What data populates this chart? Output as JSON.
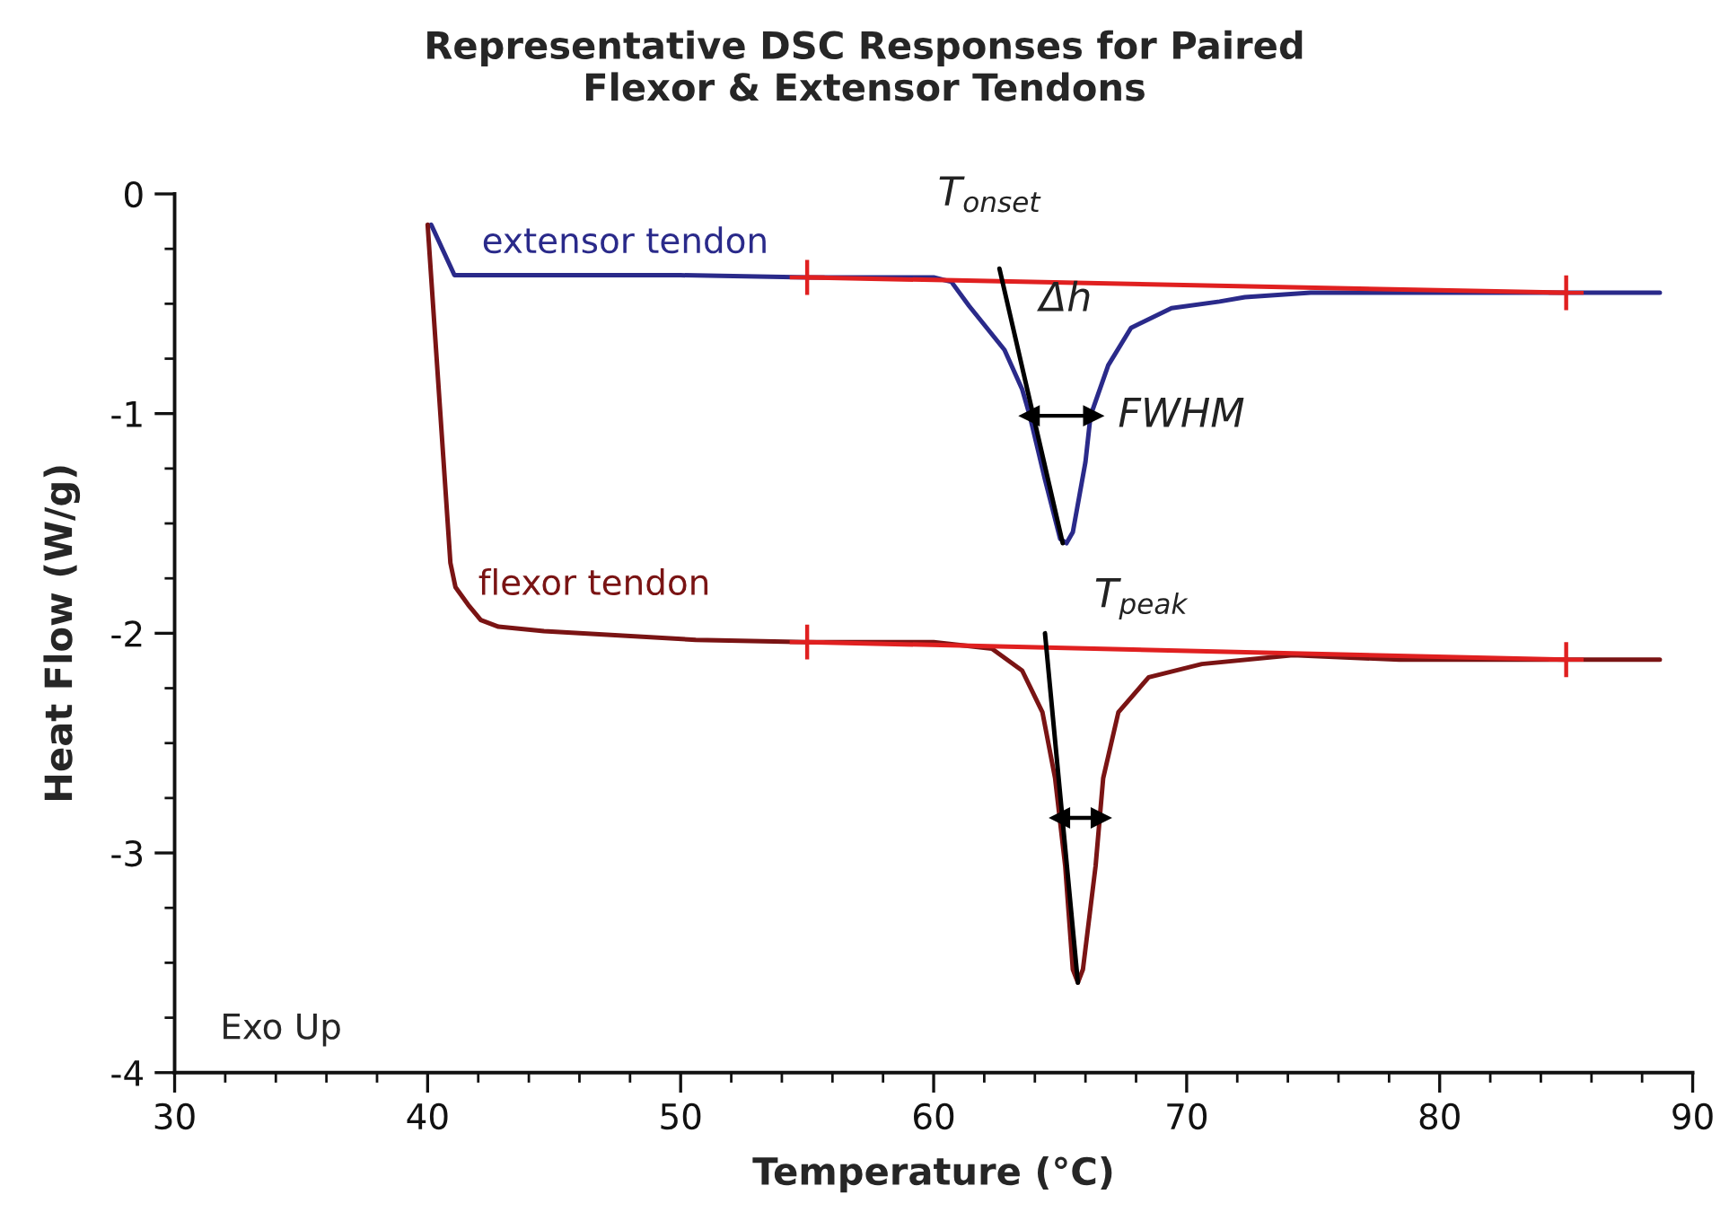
{
  "chart_data": {
    "type": "line",
    "title": "Representative DSC Responses for Paired\nFlexor & Extensor Tendons",
    "xlabel": "Temperature (°C)",
    "ylabel": "Heat Flow (W/g)",
    "xlim": [
      30,
      90
    ],
    "ylim": [
      -4,
      0
    ],
    "xticks": [
      30,
      {
        "value": 32,
        "label": null
      },
      {
        "value": 34,
        "label": null
      },
      {
        "value": 36,
        "label": null
      },
      {
        "value": 38,
        "label": null
      },
      40,
      {
        "value": 42,
        "label": null
      },
      {
        "value": 44,
        "label": null
      },
      {
        "value": 46,
        "label": null
      },
      {
        "value": 48,
        "label": null
      },
      50,
      {
        "value": 52,
        "label": null
      },
      {
        "value": 54,
        "label": null
      },
      {
        "value": 56,
        "label": null
      },
      {
        "value": 58,
        "label": null
      },
      60,
      {
        "value": 62,
        "label": null
      },
      {
        "value": 64,
        "label": null
      },
      {
        "value": 66,
        "label": null
      },
      {
        "value": 68,
        "label": null
      },
      70,
      {
        "value": 72,
        "label": null
      },
      {
        "value": 74,
        "label": null
      },
      {
        "value": 76,
        "label": null
      },
      {
        "value": 78,
        "label": null
      },
      80,
      {
        "value": 82,
        "label": null
      },
      {
        "value": 84,
        "label": null
      },
      {
        "value": 86,
        "label": null
      },
      {
        "value": 88,
        "label": null
      },
      90
    ],
    "yticks": [
      -4,
      {
        "value": -3.75,
        "label": null
      },
      {
        "value": -3.5,
        "label": null
      },
      {
        "value": -3.25,
        "label": null
      },
      -3,
      {
        "value": -2.75,
        "label": null
      },
      {
        "value": -2.5,
        "label": null
      },
      {
        "value": -2.25,
        "label": null
      },
      -2,
      {
        "value": -1.75,
        "label": null
      },
      {
        "value": -1.5,
        "label": null
      },
      {
        "value": -1.25,
        "label": null
      },
      -1,
      {
        "value": -0.75,
        "label": null
      },
      {
        "value": -0.5,
        "label": null
      },
      {
        "value": -0.25,
        "label": null
      },
      0
    ],
    "grid": false,
    "legend": false,
    "series": [
      {
        "name": "extensor tendon",
        "color": "#2a2a8a",
        "x": [
          40.14,
          41.06,
          45,
          50,
          55,
          60,
          60.7,
          61.4,
          62.1,
          62.8,
          63.5,
          63.8,
          64.4,
          65.0,
          65.25,
          65.5,
          66.0,
          66.2,
          66.9,
          67.8,
          69.4,
          71.3,
          72.3,
          74.9,
          78.4,
          88.7
        ],
        "values": [
          -0.14,
          -0.37,
          -0.37,
          -0.37,
          -0.38,
          -0.38,
          -0.4,
          -0.51,
          -0.61,
          -0.71,
          -0.89,
          -1.01,
          -1.3,
          -1.57,
          -1.59,
          -1.54,
          -1.22,
          -1.01,
          -0.78,
          -0.61,
          -0.52,
          -0.49,
          -0.47,
          -0.45,
          -0.45,
          -0.45
        ]
      },
      {
        "name": "flexor tendon",
        "color": "#7a1414",
        "x": [
          40.0,
          40.9,
          41.1,
          41.6,
          42.1,
          42.8,
          44.6,
          50.6,
          55,
          60,
          62.3,
          63.5,
          64.3,
          64.8,
          65.2,
          65.5,
          65.7,
          65.9,
          66.4,
          66.7,
          67.3,
          68.5,
          70.6,
          74.2,
          78.4,
          88.7
        ],
        "values": [
          -0.14,
          -1.68,
          -1.79,
          -1.87,
          -1.94,
          -1.97,
          -1.99,
          -2.03,
          -2.04,
          -2.04,
          -2.07,
          -2.17,
          -2.36,
          -2.66,
          -3.06,
          -3.53,
          -3.59,
          -3.53,
          -3.06,
          -2.66,
          -2.36,
          -2.2,
          -2.14,
          -2.1,
          -2.12,
          -2.12
        ]
      },
      {
        "type": "line",
        "color": "#e02020",
        "marker": "cross",
        "x": [
          55,
          85
        ],
        "values": [
          -0.38,
          -0.45
        ]
      },
      {
        "type": "line",
        "color": "#e02020",
        "marker": "cross",
        "x": [
          55,
          85
        ],
        "values": [
          -2.04,
          -2.12
        ]
      },
      {
        "type": "line",
        "color": "#000000",
        "x": [
          62.6,
          65.1
        ],
        "values": [
          -0.34,
          -1.59
        ]
      },
      {
        "type": "line",
        "color": "#000000",
        "x": [
          64.4,
          65.7
        ],
        "values": [
          -2.0,
          -3.59
        ]
      },
      {
        "type": "line",
        "color": "#000000",
        "marker": "triangle",
        "x": [
          63.8,
          66.3
        ],
        "values": [
          -1.01,
          -1.01
        ]
      },
      {
        "type": "line",
        "color": "#000000",
        "marker": "triangle",
        "x": [
          65.0,
          66.6
        ],
        "values": [
          -2.84,
          -2.84
        ]
      }
    ],
    "annotations": [
      {
        "text": "T$_{onset}$",
        "x": 62.6,
        "y": -0.34
      },
      {
        "text": "Δh",
        "x": 62.8,
        "y": -0.71
      },
      {
        "text": "FWHM",
        "x": 66.3,
        "y": -1.01
      },
      {
        "text": "T$_{peak}$",
        "x": 65.25,
        "y": -1.59
      },
      "Exo Up"
    ]
  }
}
